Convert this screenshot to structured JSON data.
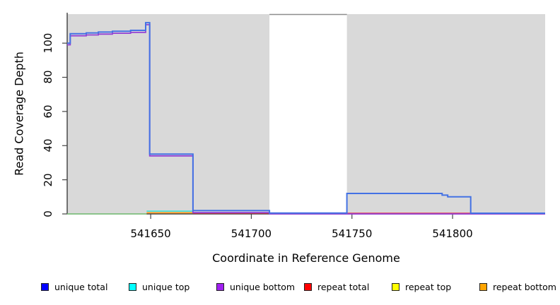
{
  "chart_data": {
    "type": "line",
    "title": "",
    "xlabel": "Coordinate in Reference Genome",
    "ylabel": "Read Coverage Depth",
    "xlim": [
      541608.5,
      541846
    ],
    "ylim": [
      0,
      117
    ],
    "grid": false,
    "x_ticks": [
      "541650",
      "541700",
      "541750",
      "541800"
    ],
    "x_tick_values": [
      541650,
      541700,
      541750,
      541800
    ],
    "y_ticks": [
      "0",
      "20",
      "40",
      "60",
      "80",
      "100"
    ],
    "y_tick_values": [
      0,
      20,
      40,
      60,
      80,
      100
    ],
    "background_regions": [
      {
        "name": "shaded-region-left",
        "x0": 541608.5,
        "x1": 541709,
        "color": "#d9d9d9"
      },
      {
        "name": "shaded-region-right",
        "x0": 541747.5,
        "x1": 541846,
        "color": "#d9d9d9"
      }
    ],
    "unshaded_gap": {
      "x0": 541709,
      "x1": 541747.5,
      "top_border_color": "#8c8c8c"
    },
    "series": [
      {
        "name": "repeat total",
        "color": "#E23A50",
        "width": 1.4,
        "points": [
          [
            541671,
            0.4
          ],
          [
            541809,
            0.4
          ]
        ]
      },
      {
        "name": "baseline green segment",
        "color": "#7CC87C",
        "width": 1.6,
        "points": [
          [
            541608.5,
            0
          ],
          [
            541648,
            0
          ]
        ]
      },
      {
        "name": "repeat bottom",
        "color": "#FFA126",
        "width": 1.8,
        "points": [
          [
            541648,
            0.7
          ],
          [
            541671,
            0.7
          ]
        ]
      },
      {
        "name": "unique top",
        "color": "#3DE0D8",
        "width": 1.6,
        "points": [
          [
            541648,
            1.6
          ],
          [
            541671,
            1.6
          ]
        ]
      },
      {
        "name": "unique bottom",
        "color": "#9440D4",
        "width": 1.8,
        "points": [
          [
            541608.5,
            99
          ],
          [
            541610,
            104.3
          ],
          [
            541618,
            104.8
          ],
          [
            541624,
            105.3
          ],
          [
            541631,
            105.8
          ],
          [
            541640,
            106.3
          ],
          [
            541647.5,
            110.8
          ],
          [
            541649.5,
            34
          ],
          [
            541671,
            0.8
          ],
          [
            541709,
            0
          ],
          [
            541846,
            0
          ]
        ]
      },
      {
        "name": "unique total",
        "color": "#4472E4",
        "width": 2,
        "points": [
          [
            541608.5,
            100
          ],
          [
            541610,
            105.5
          ],
          [
            541618,
            106
          ],
          [
            541624,
            106.5
          ],
          [
            541631,
            107
          ],
          [
            541640,
            107.5
          ],
          [
            541647.5,
            112
          ],
          [
            541649.5,
            35
          ],
          [
            541671,
            2
          ],
          [
            541709,
            0.5
          ],
          [
            541747.5,
            12
          ],
          [
            541794.8,
            11
          ],
          [
            541797.6,
            10
          ],
          [
            541809,
            0.4
          ],
          [
            541846,
            0.4
          ]
        ]
      }
    ],
    "legend_position": "bottom"
  },
  "legend": {
    "items": [
      {
        "label": "unique total",
        "color": "#0000FF"
      },
      {
        "label": "unique top",
        "color": "#00FFFF"
      },
      {
        "label": "unique bottom",
        "color": "#A020F0"
      },
      {
        "label": "repeat total",
        "color": "#FF0000"
      },
      {
        "label": "repeat top",
        "color": "#FFFF00"
      },
      {
        "label": "repeat bottom",
        "color": "#FFA500"
      }
    ]
  }
}
